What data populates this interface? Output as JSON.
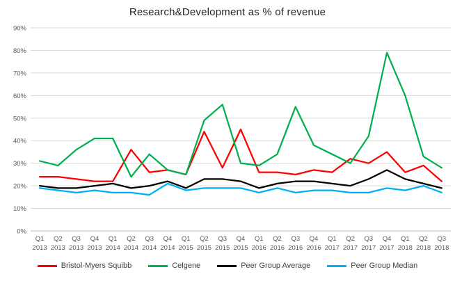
{
  "title": "Research&Development as % of revenue",
  "chart_data": {
    "type": "line",
    "title": "Research&Development as % of revenue",
    "xlabel": "",
    "ylabel": "",
    "ylim": [
      0,
      90
    ],
    "ytick_step": 10,
    "ytick_format": "percent",
    "grid": true,
    "legend_position": "bottom",
    "categories": [
      "Q1 2013",
      "Q2 2013",
      "Q3 2013",
      "Q4 2013",
      "Q1 2014",
      "Q2 2014",
      "Q3 2014",
      "Q4 2014",
      "Q1 2015",
      "Q2 2015",
      "Q3 2015",
      "Q4 2015",
      "Q1 2016",
      "Q2 2016",
      "Q3 2016",
      "Q4 2016",
      "Q1 2017",
      "Q2 2017",
      "Q3 2017",
      "Q4 2017",
      "Q1 2018",
      "Q2 2018",
      "Q3 2018"
    ],
    "series": [
      {
        "name": "Bristol-Myers Squibb",
        "color": "#FF0000",
        "values": [
          24,
          24,
          23,
          22,
          22,
          36,
          26,
          27,
          25,
          44,
          28,
          45,
          26,
          26,
          25,
          27,
          26,
          32,
          30,
          35,
          26,
          29,
          22
        ]
      },
      {
        "name": "Celgene",
        "color": "#00B050",
        "values": [
          31,
          29,
          36,
          41,
          41,
          24,
          34,
          27,
          25,
          49,
          56,
          30,
          29,
          34,
          55,
          38,
          34,
          30,
          42,
          79,
          60,
          33,
          28
        ]
      },
      {
        "name": "Peer Group Average",
        "color": "#000000",
        "values": [
          20,
          19,
          19,
          20,
          21,
          19,
          20,
          22,
          19,
          23,
          23,
          22,
          19,
          21,
          22,
          22,
          21,
          20,
          23,
          27,
          23,
          21,
          19
        ]
      },
      {
        "name": "Peer Group Median",
        "color": "#00B0F0",
        "values": [
          19,
          18,
          17,
          18,
          17,
          17,
          16,
          21,
          18,
          19,
          19,
          19,
          17,
          19,
          17,
          18,
          18,
          17,
          17,
          19,
          18,
          20,
          17
        ]
      }
    ],
    "gridline_color": "#D9D9D9",
    "axis_line_color": "#BFBFBF",
    "tick_label_color": "#595959"
  }
}
